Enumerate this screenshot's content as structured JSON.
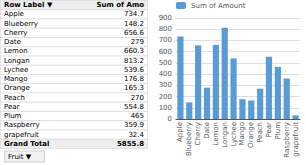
{
  "chart_data": {
    "type": "bar",
    "categories": [
      "Apple",
      "Blueberry",
      "Cherry",
      "Date",
      "Lemon",
      "Longan",
      "Lychee",
      "Mango",
      "Orange",
      "Peach",
      "Pear",
      "Plum",
      "Raspberry",
      "grapefruit"
    ],
    "series": [
      {
        "name": "Sum of Amount",
        "color": "#5B9BD5",
        "values": [
          734.7,
          148.2,
          656.6,
          279,
          660.3,
          813.2,
          539.6,
          176.8,
          165.3,
          270,
          554.8,
          465,
          359.9,
          32.4
        ]
      }
    ],
    "ylim": [
      0,
      900
    ],
    "yticks": [
      0,
      100,
      200,
      300,
      400,
      500,
      600,
      700,
      800,
      900
    ],
    "grid": true,
    "legend": "upper left",
    "annotations": [
      "Row Label ▼",
      "Sum of Amo",
      "Apple",
      "734.7",
      "Blueberry",
      "148.2",
      "Cherry",
      "656.6",
      "Date",
      "279",
      "Lemon",
      "660.3",
      "Longan",
      "813.2",
      "Lychee",
      "539.6",
      "Mango",
      "176.8",
      "Orange",
      "165.3",
      "Peach",
      "270",
      "Pear",
      "554.8",
      "Plum",
      "465",
      "Raspberry",
      "359.9",
      "grapefruit",
      "32.4",
      "Grand Total",
      "5855.8",
      "Fruit ▼"
    ]
  }
}
